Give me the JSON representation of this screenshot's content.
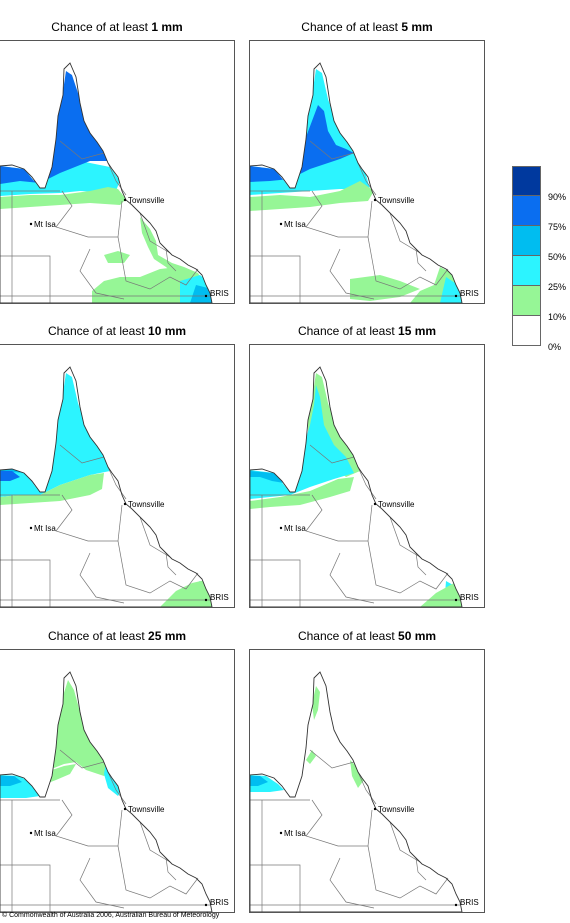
{
  "panels": [
    {
      "prefix": "Chance of at least ",
      "amount": "1 mm",
      "level": 0
    },
    {
      "prefix": "Chance of at least ",
      "amount": "5 mm",
      "level": 1
    },
    {
      "prefix": "Chance of at least ",
      "amount": "10 mm",
      "level": 2
    },
    {
      "prefix": "Chance of at least ",
      "amount": "15 mm",
      "level": 3
    },
    {
      "prefix": "Chance of at least ",
      "amount": "25 mm",
      "level": 4
    },
    {
      "prefix": "Chance of at least ",
      "amount": "50 mm",
      "level": 5
    }
  ],
  "places": {
    "townsville": "Townsville",
    "mt_isa": "Mt Isa",
    "brisbane": "BRIS"
  },
  "legend": {
    "ticks": [
      "90%",
      "75%",
      "50%",
      "25%",
      "10%",
      "0%"
    ],
    "colors": [
      "#00399e",
      "#0a6ef0",
      "#00bdf0",
      "#2cf4ff",
      "#96f696",
      "#ffffff"
    ]
  },
  "footer": "© Commonwealth of Australia 2006, Australian Bureau of Meteorology"
}
